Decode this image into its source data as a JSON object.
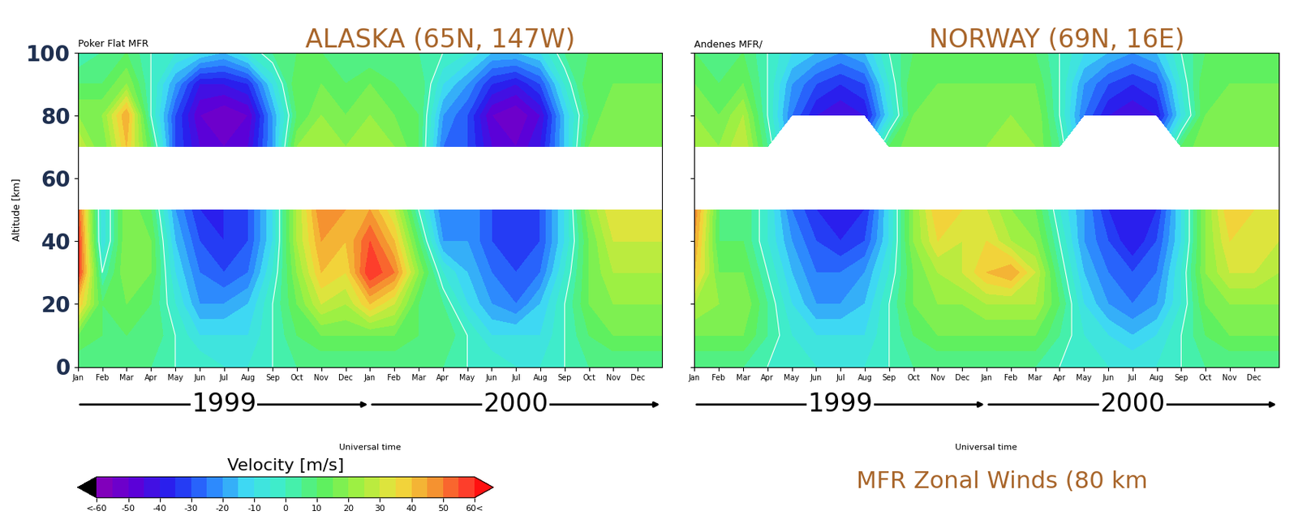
{
  "chart_data": [
    {
      "type": "heatmap",
      "title": "ALASKA (65N, 147W)",
      "subtitle": "Poker Flat MFR",
      "x_label": "Universal time",
      "y_label": "Altitude [km]",
      "x": [
        0,
        1,
        2,
        3,
        4,
        5,
        6,
        7,
        8,
        9,
        10,
        11,
        12,
        13,
        14,
        15,
        16,
        17,
        18,
        19,
        20,
        21,
        22,
        23,
        24
      ],
      "y": [
        0,
        10,
        20,
        30,
        40,
        50,
        60,
        70,
        80,
        90,
        100
      ],
      "xlim": [
        0,
        24
      ],
      "xticks": [
        {
          "value": 0,
          "label": "Jan"
        },
        {
          "value": 1,
          "label": "Feb"
        },
        {
          "value": 2,
          "label": "Mar"
        },
        {
          "value": 3,
          "label": "Apr"
        },
        {
          "value": 4,
          "label": "May"
        },
        {
          "value": 5,
          "label": "Jun"
        },
        {
          "value": 6,
          "label": "Jul"
        },
        {
          "value": 7,
          "label": "Aug"
        },
        {
          "value": 8,
          "label": "Sep"
        },
        {
          "value": 9,
          "label": "Oct"
        },
        {
          "value": 10,
          "label": "Nov"
        },
        {
          "value": 11,
          "label": "Dec"
        },
        {
          "value": 12,
          "label": "Jan"
        },
        {
          "value": 13,
          "label": "Feb"
        },
        {
          "value": 14,
          "label": "Mar"
        },
        {
          "value": 15,
          "label": "Apr"
        },
        {
          "value": 16,
          "label": "May"
        },
        {
          "value": 17,
          "label": "Jun"
        },
        {
          "value": 18,
          "label": "Jul"
        },
        {
          "value": 19,
          "label": "Aug"
        },
        {
          "value": 20,
          "label": "Sep"
        },
        {
          "value": 21,
          "label": "Oct"
        },
        {
          "value": 22,
          "label": "Nov"
        },
        {
          "value": 23,
          "label": "Dec"
        }
      ],
      "ylim": [
        0,
        100
      ],
      "yticks": [
        0,
        20,
        40,
        60,
        80,
        100
      ],
      "years": [
        {
          "label": "1999",
          "start": 0,
          "end": 12
        },
        {
          "label": "2000",
          "start": 12,
          "end": 24
        }
      ],
      "cells": [
        [
          5,
          5,
          5,
          5,
          0,
          0,
          -5,
          -5,
          0,
          5,
          5,
          5,
          5,
          5,
          5,
          5,
          0,
          0,
          -5,
          -5,
          0,
          5,
          5,
          5,
          5
        ],
        [
          15,
          10,
          10,
          10,
          0,
          -10,
          -10,
          -10,
          0,
          10,
          15,
          15,
          15,
          15,
          10,
          10,
          0,
          -10,
          -10,
          -10,
          0,
          10,
          15,
          15,
          15
        ],
        [
          40,
          10,
          15,
          10,
          -5,
          -20,
          -20,
          -15,
          0,
          15,
          30,
          25,
          40,
          30,
          10,
          5,
          -10,
          -20,
          -25,
          -15,
          0,
          15,
          20,
          20,
          20
        ],
        [
          60,
          0,
          20,
          15,
          -10,
          -25,
          -30,
          -25,
          -5,
          20,
          40,
          35,
          60,
          50,
          20,
          -5,
          -15,
          -25,
          -30,
          -25,
          -5,
          15,
          25,
          25,
          25
        ],
        [
          60,
          -10,
          20,
          15,
          -15,
          -30,
          -35,
          -30,
          -10,
          25,
          45,
          40,
          55,
          40,
          10,
          -20,
          -20,
          -30,
          -35,
          -30,
          -10,
          15,
          30,
          30,
          30
        ],
        [
          55,
          -10,
          20,
          10,
          -20,
          -35,
          -35,
          -30,
          -10,
          25,
          50,
          45,
          45,
          30,
          0,
          -25,
          -20,
          -30,
          -35,
          -30,
          -10,
          20,
          35,
          35,
          35
        ],
        [
          null,
          null,
          null,
          null,
          null,
          null,
          null,
          null,
          null,
          null,
          null,
          null,
          null,
          null,
          null,
          null,
          null,
          null,
          null,
          null,
          null,
          null,
          null,
          null,
          null
        ],
        [
          30,
          15,
          40,
          10,
          -30,
          -45,
          -50,
          -45,
          -20,
          20,
          25,
          20,
          25,
          20,
          10,
          -25,
          -30,
          -45,
          -50,
          -40,
          -15,
          15,
          20,
          20,
          20
        ],
        [
          20,
          20,
          45,
          0,
          -30,
          -50,
          -55,
          -50,
          -20,
          10,
          20,
          15,
          20,
          15,
          10,
          -20,
          -30,
          -50,
          -55,
          -45,
          -15,
          10,
          20,
          20,
          20
        ],
        [
          10,
          10,
          20,
          0,
          -20,
          -40,
          -40,
          -35,
          -10,
          15,
          15,
          10,
          15,
          10,
          10,
          -10,
          -20,
          -35,
          -40,
          -30,
          -5,
          15,
          15,
          15,
          15
        ],
        [
          0,
          5,
          10,
          0,
          -5,
          -10,
          -15,
          -5,
          5,
          10,
          10,
          5,
          5,
          5,
          5,
          0,
          -5,
          -15,
          -15,
          -10,
          5,
          10,
          10,
          10,
          10
        ]
      ]
    },
    {
      "type": "heatmap",
      "title": "NORWAY (69N, 16E)",
      "subtitle": "Andenes MFR/",
      "x_label": "Universal time",
      "tick_labels": "x",
      "x": [
        0,
        1,
        2,
        3,
        4,
        5,
        6,
        7,
        8,
        9,
        10,
        11,
        12,
        13,
        14,
        15,
        16,
        17,
        18,
        19,
        20,
        21,
        22,
        23,
        24
      ],
      "y": [
        0,
        10,
        20,
        30,
        40,
        50,
        60,
        70,
        80,
        90,
        100
      ],
      "xlim": [
        0,
        24
      ],
      "xticks": [
        {
          "value": 0,
          "label": "Jan"
        },
        {
          "value": 1,
          "label": "Feb"
        },
        {
          "value": 2,
          "label": "Mar"
        },
        {
          "value": 3,
          "label": "Apr"
        },
        {
          "value": 4,
          "label": "May"
        },
        {
          "value": 5,
          "label": "Jun"
        },
        {
          "value": 6,
          "label": "Jul"
        },
        {
          "value": 7,
          "label": "Aug"
        },
        {
          "value": 8,
          "label": "Sep"
        },
        {
          "value": 9,
          "label": "Oct"
        },
        {
          "value": 10,
          "label": "Nov"
        },
        {
          "value": 11,
          "label": "Dec"
        },
        {
          "value": 12,
          "label": "Jan"
        },
        {
          "value": 13,
          "label": "Feb"
        },
        {
          "value": 14,
          "label": "Mar"
        },
        {
          "value": 15,
          "label": "Apr"
        },
        {
          "value": 16,
          "label": "May"
        },
        {
          "value": 17,
          "label": "Jun"
        },
        {
          "value": 18,
          "label": "Jul"
        },
        {
          "value": 19,
          "label": "Aug"
        },
        {
          "value": 20,
          "label": "Sep"
        },
        {
          "value": 21,
          "label": "Oct"
        },
        {
          "value": 22,
          "label": "Nov"
        },
        {
          "value": 23,
          "label": "Dec"
        }
      ],
      "ylim": [
        0,
        100
      ],
      "yticks": [
        0,
        20,
        40,
        60,
        80,
        100
      ],
      "years": [
        {
          "label": "1999",
          "start": 0,
          "end": 12
        },
        {
          "label": "2000",
          "start": 12,
          "end": 24
        }
      ],
      "cells": [
        [
          5,
          5,
          5,
          0,
          0,
          -5,
          -5,
          -5,
          0,
          5,
          5,
          5,
          5,
          5,
          5,
          0,
          0,
          -5,
          -5,
          -5,
          0,
          5,
          5,
          5,
          5
        ],
        [
          15,
          15,
          15,
          5,
          -5,
          -10,
          -10,
          -10,
          0,
          10,
          15,
          15,
          15,
          15,
          15,
          5,
          -5,
          -10,
          -15,
          -10,
          0,
          10,
          15,
          15,
          15
        ],
        [
          25,
          20,
          20,
          5,
          -10,
          -20,
          -20,
          -15,
          0,
          15,
          20,
          20,
          25,
          25,
          25,
          10,
          -10,
          -20,
          -25,
          -20,
          -5,
          15,
          20,
          20,
          20
        ],
        [
          40,
          15,
          15,
          0,
          -15,
          -25,
          -25,
          -20,
          -5,
          15,
          25,
          30,
          40,
          45,
          30,
          5,
          -15,
          -25,
          -30,
          -25,
          -5,
          20,
          30,
          30,
          25
        ],
        [
          45,
          10,
          10,
          -5,
          -20,
          -30,
          -35,
          -30,
          -10,
          20,
          35,
          30,
          35,
          25,
          20,
          0,
          -20,
          -30,
          -40,
          -30,
          -10,
          20,
          35,
          35,
          30
        ],
        [
          50,
          10,
          10,
          -5,
          -25,
          -35,
          -40,
          -35,
          -10,
          20,
          40,
          35,
          30,
          20,
          15,
          -5,
          -20,
          -35,
          -40,
          -35,
          -10,
          20,
          40,
          35,
          30
        ],
        [
          null,
          null,
          null,
          null,
          null,
          null,
          null,
          null,
          null,
          null,
          null,
          null,
          null,
          null,
          null,
          null,
          null,
          null,
          null,
          null,
          null,
          null,
          null,
          null,
          null
        ],
        [
          25,
          20,
          30,
          5,
          null,
          null,
          null,
          null,
          10,
          20,
          20,
          20,
          20,
          25,
          20,
          5,
          null,
          null,
          null,
          null,
          10,
          20,
          20,
          20,
          20
        ],
        [
          20,
          15,
          25,
          0,
          -25,
          -40,
          -45,
          -40,
          -10,
          15,
          20,
          20,
          20,
          20,
          20,
          0,
          -25,
          -40,
          -45,
          -40,
          -10,
          15,
          20,
          20,
          20
        ],
        [
          15,
          10,
          15,
          0,
          -20,
          -30,
          -35,
          -30,
          -5,
          15,
          15,
          15,
          15,
          15,
          15,
          0,
          -20,
          -30,
          -35,
          -30,
          -5,
          15,
          15,
          15,
          15
        ],
        [
          10,
          5,
          10,
          0,
          -10,
          -15,
          -20,
          -15,
          0,
          10,
          10,
          10,
          10,
          10,
          10,
          0,
          -10,
          -15,
          -20,
          -15,
          0,
          10,
          10,
          10,
          10
        ]
      ]
    }
  ],
  "colorbar": {
    "label": "Velocity [m/s]",
    "range": [
      -60,
      60
    ],
    "ticks": [
      {
        "value": -60,
        "label": "<-60"
      },
      -50,
      -40,
      -30,
      -20,
      -10,
      0,
      10,
      20,
      30,
      40,
      50,
      {
        "value": 60,
        "label": "60<"
      }
    ]
  },
  "footer": "MFR Zonal Winds (80 km"
}
